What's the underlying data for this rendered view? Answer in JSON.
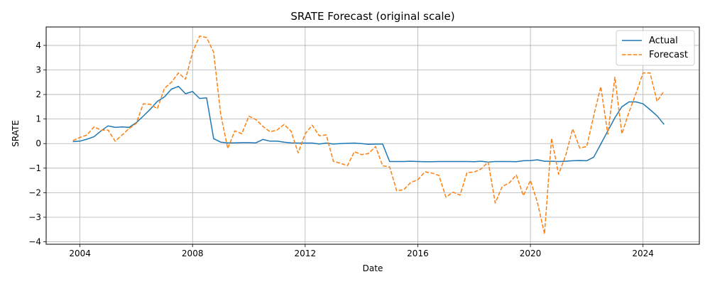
{
  "chart_data": {
    "type": "line",
    "title": "SRATE Forecast (original scale)",
    "xlabel": "Date",
    "ylabel": "SRATE",
    "xlim": [
      2002.8,
      2026.0
    ],
    "ylim": [
      -4.1,
      4.75
    ],
    "x_ticks": [
      2004,
      2008,
      2012,
      2016,
      2020,
      2024
    ],
    "y_ticks": [
      -4,
      -3,
      -2,
      -1,
      0,
      1,
      2,
      3,
      4
    ],
    "grid": true,
    "legend_position": "top-right",
    "series": [
      {
        "name": "Actual",
        "color": "#1f77b4",
        "style": "solid",
        "x": [
          2003.75,
          2004.0,
          2004.25,
          2004.5,
          2004.75,
          2005.0,
          2005.25,
          2005.5,
          2005.75,
          2006.0,
          2006.25,
          2006.5,
          2006.75,
          2007.0,
          2007.25,
          2007.5,
          2007.75,
          2008.0,
          2008.25,
          2008.5,
          2008.75,
          2009.0,
          2009.25,
          2009.5,
          2009.75,
          2010.0,
          2010.25,
          2010.5,
          2010.75,
          2011.0,
          2011.25,
          2011.5,
          2011.75,
          2012.0,
          2012.25,
          2012.5,
          2012.75,
          2013.0,
          2013.25,
          2013.5,
          2013.75,
          2014.0,
          2014.25,
          2014.5,
          2014.75,
          2015.0,
          2015.25,
          2015.5,
          2015.75,
          2016.0,
          2016.25,
          2016.5,
          2016.75,
          2017.0,
          2017.25,
          2017.5,
          2017.75,
          2018.0,
          2018.25,
          2018.5,
          2018.75,
          2019.0,
          2019.25,
          2019.5,
          2019.75,
          2020.0,
          2020.25,
          2020.5,
          2020.75,
          2021.0,
          2021.25,
          2021.5,
          2021.75,
          2022.0,
          2022.25,
          2022.5,
          2022.75,
          2023.0,
          2023.25,
          2023.5,
          2023.75,
          2024.0,
          2024.25,
          2024.5,
          2024.75
        ],
        "values": [
          0.08,
          0.1,
          0.18,
          0.28,
          0.52,
          0.72,
          0.66,
          0.68,
          0.66,
          0.85,
          1.12,
          1.4,
          1.72,
          1.9,
          2.22,
          2.33,
          2.03,
          2.12,
          1.84,
          1.86,
          0.2,
          0.06,
          0.03,
          0.03,
          0.04,
          0.04,
          0.03,
          0.17,
          0.1,
          0.1,
          0.06,
          0.03,
          0.02,
          0.02,
          0.02,
          -0.02,
          0.02,
          -0.02,
          0.0,
          0.01,
          0.02,
          0.0,
          -0.03,
          -0.02,
          -0.02,
          -0.73,
          -0.73,
          -0.73,
          -0.72,
          -0.73,
          -0.74,
          -0.74,
          -0.73,
          -0.73,
          -0.73,
          -0.73,
          -0.73,
          -0.74,
          -0.72,
          -0.75,
          -0.73,
          -0.73,
          -0.73,
          -0.74,
          -0.7,
          -0.69,
          -0.66,
          -0.72,
          -0.72,
          -0.73,
          -0.72,
          -0.7,
          -0.69,
          -0.7,
          -0.55,
          -0.02,
          0.52,
          1.05,
          1.5,
          1.7,
          1.7,
          1.62,
          1.38,
          1.13,
          0.78
        ]
      },
      {
        "name": "Forecast",
        "color": "#ff7f0e",
        "style": "dashed",
        "x": [
          2003.75,
          2004.0,
          2004.25,
          2004.5,
          2004.75,
          2005.0,
          2005.25,
          2005.5,
          2005.75,
          2006.0,
          2006.25,
          2006.5,
          2006.75,
          2007.0,
          2007.25,
          2007.5,
          2007.75,
          2008.0,
          2008.25,
          2008.5,
          2008.75,
          2009.0,
          2009.25,
          2009.5,
          2009.75,
          2010.0,
          2010.25,
          2010.5,
          2010.75,
          2011.0,
          2011.25,
          2011.5,
          2011.75,
          2012.0,
          2012.25,
          2012.5,
          2012.75,
          2013.0,
          2013.25,
          2013.5,
          2013.75,
          2014.0,
          2014.25,
          2014.5,
          2014.75,
          2015.0,
          2015.25,
          2015.5,
          2015.75,
          2016.0,
          2016.25,
          2016.5,
          2016.75,
          2017.0,
          2017.25,
          2017.5,
          2017.75,
          2018.0,
          2018.25,
          2018.5,
          2018.75,
          2019.0,
          2019.25,
          2019.5,
          2019.75,
          2020.0,
          2020.25,
          2020.5,
          2020.75,
          2021.0,
          2021.25,
          2021.5,
          2021.75,
          2022.0,
          2022.25,
          2022.5,
          2022.75,
          2023.0,
          2023.25,
          2023.5,
          2023.75,
          2024.0,
          2024.25,
          2024.5,
          2024.75
        ],
        "values": [
          0.12,
          0.25,
          0.35,
          0.68,
          0.55,
          0.55,
          0.1,
          0.35,
          0.62,
          0.82,
          1.62,
          1.6,
          1.42,
          2.25,
          2.5,
          2.88,
          2.62,
          3.72,
          4.38,
          4.32,
          3.72,
          1.18,
          -0.2,
          0.52,
          0.4,
          1.12,
          0.98,
          0.7,
          0.48,
          0.55,
          0.78,
          0.5,
          -0.38,
          0.4,
          0.75,
          0.32,
          0.35,
          -0.72,
          -0.8,
          -0.9,
          -0.33,
          -0.45,
          -0.4,
          -0.12,
          -0.9,
          -0.95,
          -1.92,
          -1.88,
          -1.58,
          -1.48,
          -1.15,
          -1.2,
          -1.3,
          -2.18,
          -1.98,
          -2.1,
          -1.18,
          -1.16,
          -1.03,
          -0.75,
          -2.42,
          -1.75,
          -1.6,
          -1.28,
          -2.12,
          -1.5,
          -2.4,
          -3.68,
          0.22,
          -1.25,
          -0.5,
          0.6,
          -0.18,
          -0.12,
          1.15,
          2.32,
          0.38,
          2.7,
          0.4,
          1.28,
          2.05,
          2.88,
          2.88,
          1.72,
          2.15
        ]
      }
    ]
  }
}
